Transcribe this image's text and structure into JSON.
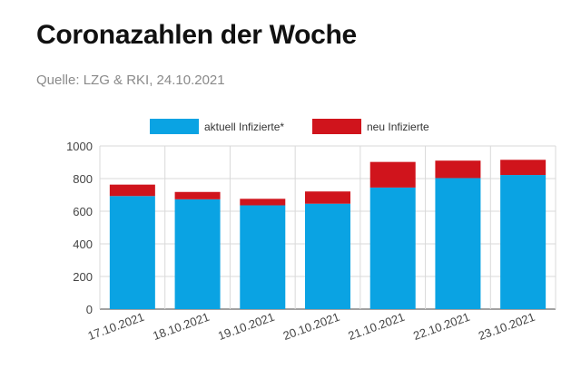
{
  "header": {
    "title": "Coronazahlen der Woche",
    "source": "Quelle: LZG & RKI, 24.10.2021"
  },
  "colors": {
    "aktuell": "#0aa3e3",
    "neu": "#d0141c",
    "grid": "#d9d9d9",
    "axis": "#444444"
  },
  "chart_data": {
    "type": "bar",
    "stacked": true,
    "categories": [
      "17.10.2021",
      "18.10.2021",
      "19.10.2021",
      "20.10.2021",
      "21.10.2021",
      "22.10.2021",
      "23.10.2021"
    ],
    "series": [
      {
        "name": "aktuell Infizierte*",
        "values": [
          693,
          673,
          636,
          646,
          745,
          803,
          822
        ]
      },
      {
        "name": "neu Infizierte",
        "values": [
          70,
          45,
          40,
          75,
          157,
          107,
          93
        ]
      }
    ],
    "title": "",
    "xlabel": "",
    "ylabel": "",
    "ylim": [
      0,
      1000
    ],
    "yticks": [
      0,
      200,
      400,
      600,
      800,
      1000
    ],
    "grid": true,
    "legend": "top-center"
  }
}
